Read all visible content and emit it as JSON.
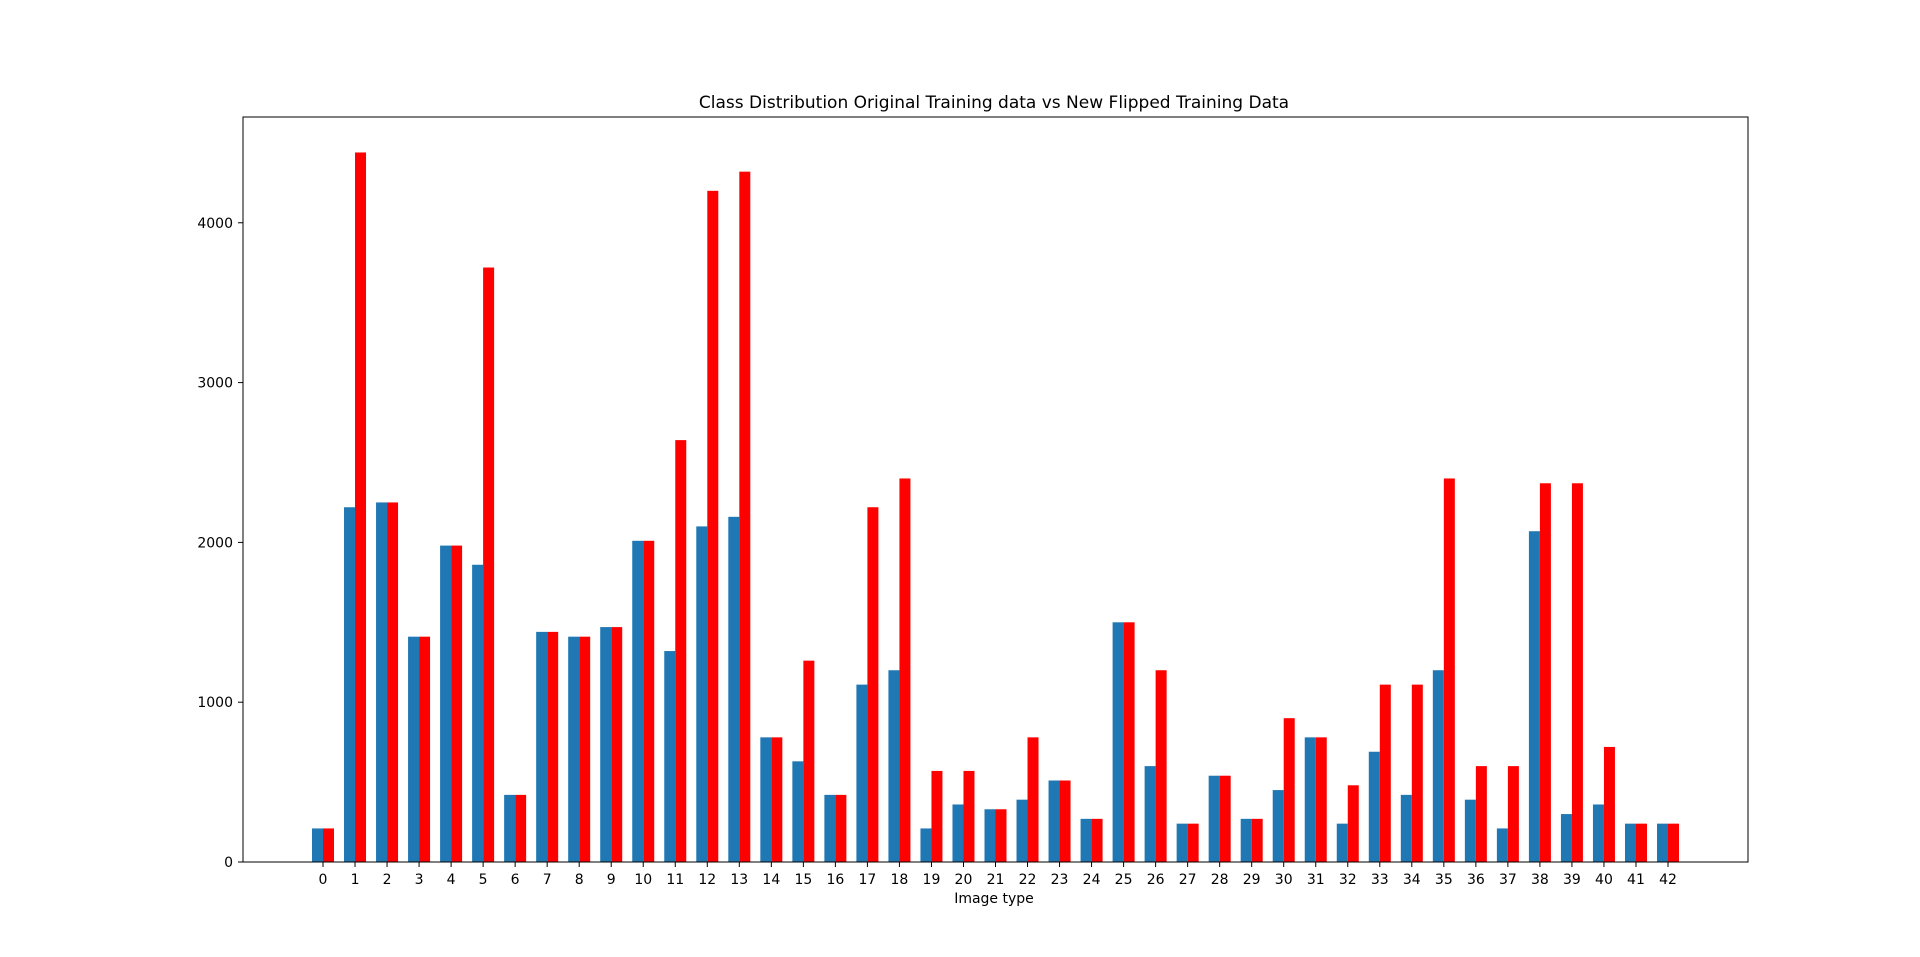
{
  "chart_data": {
    "type": "bar",
    "title": "Class Distribution Original Training data vs New Flipped Training Data",
    "xlabel": "Image type",
    "ylabel": "",
    "categories": [
      "0",
      "1",
      "2",
      "3",
      "4",
      "5",
      "6",
      "7",
      "8",
      "9",
      "10",
      "11",
      "12",
      "13",
      "14",
      "15",
      "16",
      "17",
      "18",
      "19",
      "20",
      "21",
      "22",
      "23",
      "24",
      "25",
      "26",
      "27",
      "28",
      "29",
      "30",
      "31",
      "32",
      "33",
      "34",
      "35",
      "36",
      "37",
      "38",
      "39",
      "40",
      "41",
      "42"
    ],
    "series": [
      {
        "color": "#1f77b4",
        "values": [
          210,
          2220,
          2250,
          1410,
          1980,
          1860,
          420,
          1440,
          1410,
          1470,
          2010,
          1320,
          2100,
          2160,
          780,
          630,
          420,
          1110,
          1200,
          210,
          360,
          330,
          390,
          510,
          270,
          1500,
          600,
          240,
          540,
          270,
          450,
          780,
          240,
          690,
          420,
          1200,
          390,
          210,
          2070,
          300,
          360,
          240,
          240
        ]
      },
      {
        "color": "#ff0000",
        "values": [
          210,
          4440,
          2250,
          1410,
          1980,
          3720,
          420,
          1440,
          1410,
          1470,
          2010,
          2640,
          4200,
          4320,
          780,
          1260,
          420,
          2220,
          2400,
          570,
          570,
          330,
          780,
          510,
          270,
          1500,
          1200,
          240,
          540,
          270,
          900,
          780,
          480,
          1110,
          1110,
          2400,
          600,
          600,
          2370,
          2370,
          720,
          240,
          240
        ]
      }
    ],
    "ylim": [
      0,
      4662
    ],
    "yticks": [
      0,
      1000,
      2000,
      3000,
      4000
    ],
    "grid": false,
    "legend": "none"
  }
}
